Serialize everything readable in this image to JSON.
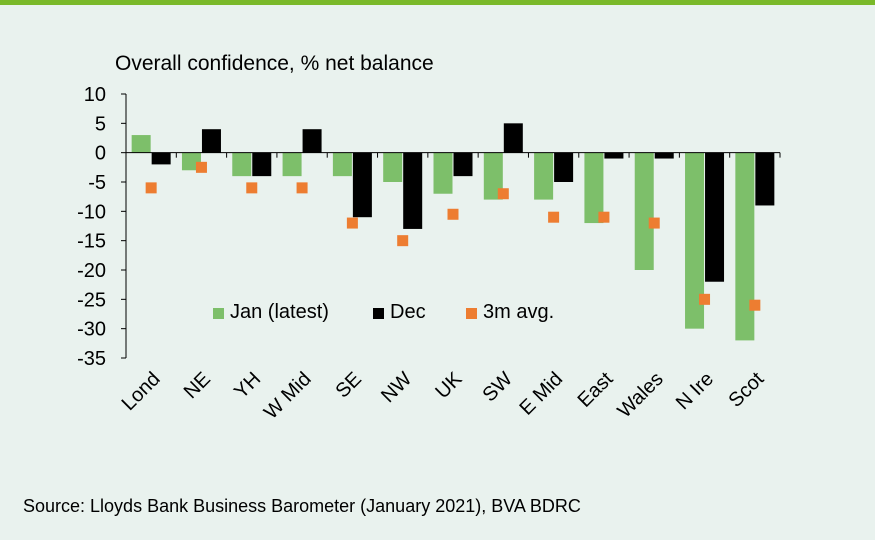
{
  "chart_data": {
    "type": "bar",
    "title": "Overall confidence, % net balance",
    "categories": [
      "Lond",
      "NE",
      "YH",
      "W Mid",
      "SE",
      "NW",
      "UK",
      "SW",
      "E Mid",
      "East",
      "Wales",
      "N Ire",
      "Scot"
    ],
    "series": [
      {
        "name": "Jan (latest)",
        "kind": "bar",
        "color": "#7dbf6a",
        "values": [
          3,
          -3,
          -4,
          -4,
          -4,
          -5,
          -7,
          -8,
          -8,
          -12,
          -20,
          -30,
          -32
        ]
      },
      {
        "name": "Dec",
        "kind": "bar",
        "color": "#000000",
        "values": [
          -2,
          4,
          -4,
          4,
          -11,
          -13,
          -4,
          5,
          -5,
          -1,
          -1,
          -22,
          -9
        ]
      },
      {
        "name": "3m avg.",
        "kind": "marker",
        "color": "#ed7d31",
        "values": [
          -6,
          -2.5,
          -6,
          -6,
          -12,
          -15,
          -10.5,
          -7,
          -11,
          -11,
          -12,
          -25,
          -26
        ]
      }
    ],
    "ylim": [
      -35,
      10
    ],
    "yticks": [
      "10",
      "5",
      "0",
      "-5",
      "-10",
      "-15",
      "-20",
      "-25",
      "-30",
      "-35"
    ],
    "legend_position": "lower-left-inside",
    "grid": false
  },
  "source": "Source: Lloyds Bank Business Barometer (January 2021), BVA BDRC"
}
